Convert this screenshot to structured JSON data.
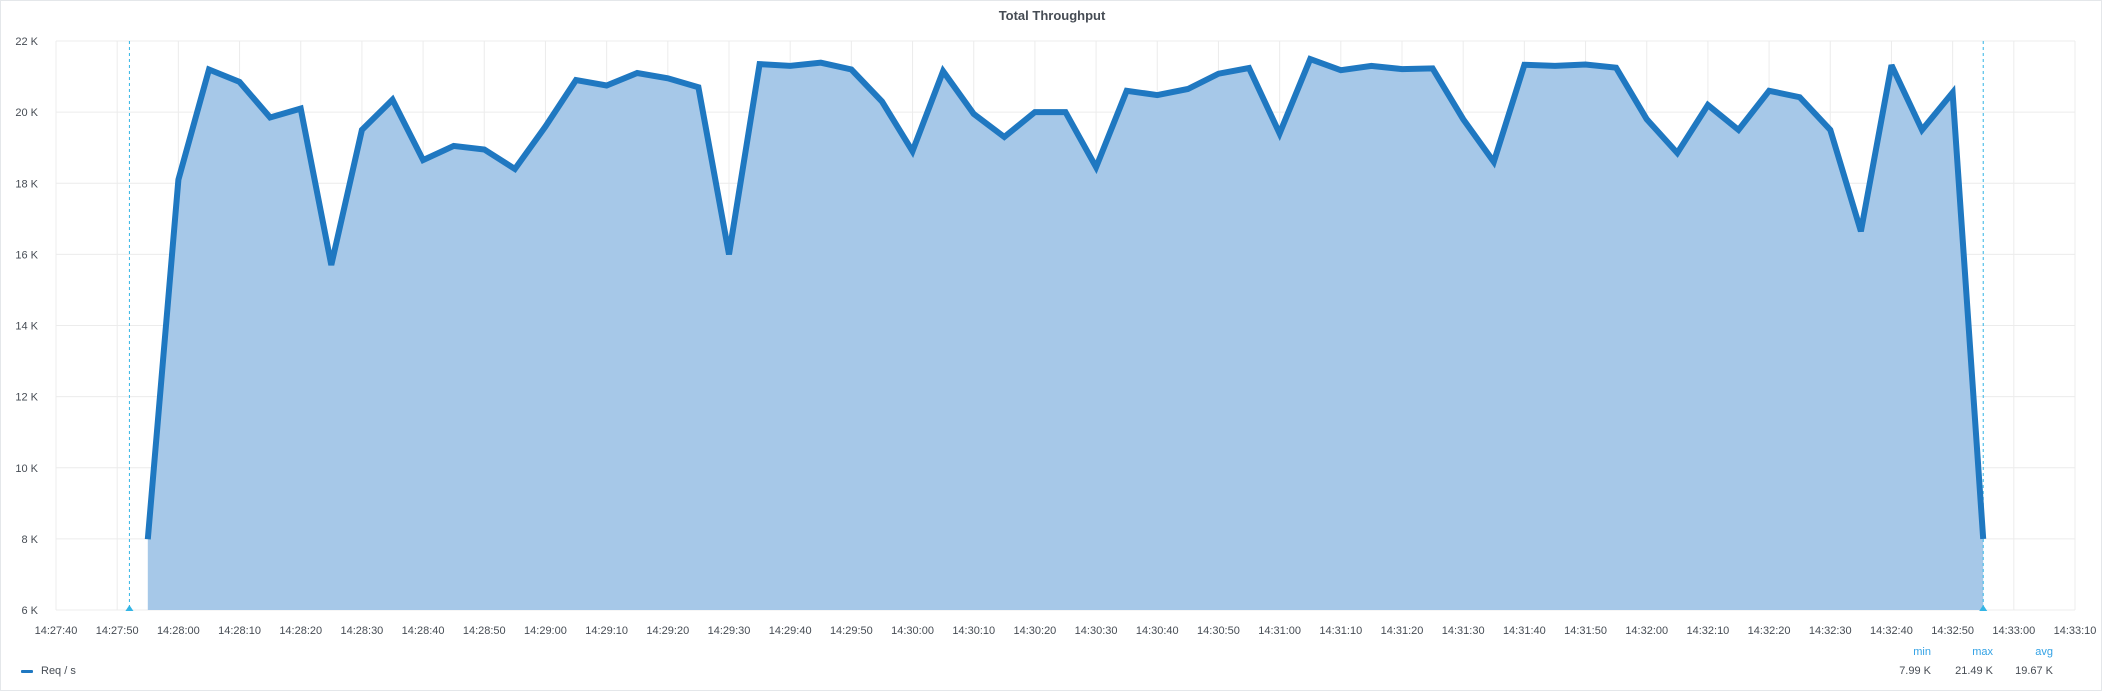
{
  "panel": {
    "title": "Total Throughput"
  },
  "legend": {
    "series_label": "Req / s",
    "stats": [
      {
        "label": "min",
        "value": "7.99 K"
      },
      {
        "label": "max",
        "value": "21.49 K"
      },
      {
        "label": "avg",
        "value": "19.67 K"
      }
    ]
  },
  "colors": {
    "line": "#1f78c1",
    "fill": "#a6c8e8",
    "grid": "#ececec",
    "marker": "#33b5e5",
    "axis_text": "#464c54"
  },
  "chart_data": {
    "type": "area",
    "title": "Total Throughput",
    "xlabel": "",
    "ylabel": "",
    "grid": true,
    "legend_placement": "bottom-left",
    "x_tick_labels": [
      "14:27:40",
      "14:27:50",
      "14:28:00",
      "14:28:10",
      "14:28:20",
      "14:28:30",
      "14:28:40",
      "14:28:50",
      "14:29:00",
      "14:29:10",
      "14:29:20",
      "14:29:30",
      "14:29:40",
      "14:29:50",
      "14:30:00",
      "14:30:10",
      "14:30:20",
      "14:30:30",
      "14:30:40",
      "14:30:50",
      "14:31:00",
      "14:31:10",
      "14:31:20",
      "14:31:30",
      "14:31:40",
      "14:31:50",
      "14:32:00",
      "14:32:10",
      "14:32:20",
      "14:32:30",
      "14:32:40",
      "14:32:50",
      "14:33:00",
      "14:33:10"
    ],
    "y_tick_labels": [
      "6 K",
      "8 K",
      "10 K",
      "12 K",
      "14 K",
      "16 K",
      "18 K",
      "20 K",
      "22 K"
    ],
    "ylim": [
      6000,
      22000
    ],
    "x_range": [
      "14:27:40",
      "14:33:10"
    ],
    "markers": [
      "14:27:52",
      "14:32:55"
    ],
    "series": [
      {
        "name": "Req / s",
        "x": [
          "14:27:55",
          "14:28:00",
          "14:28:05",
          "14:28:10",
          "14:28:15",
          "14:28:20",
          "14:28:25",
          "14:28:30",
          "14:28:35",
          "14:28:40",
          "14:28:45",
          "14:28:50",
          "14:28:55",
          "14:29:00",
          "14:29:05",
          "14:29:10",
          "14:29:15",
          "14:29:20",
          "14:29:25",
          "14:29:30",
          "14:29:35",
          "14:29:40",
          "14:29:45",
          "14:29:50",
          "14:29:55",
          "14:30:00",
          "14:30:05",
          "14:30:10",
          "14:30:15",
          "14:30:20",
          "14:30:25",
          "14:30:30",
          "14:30:35",
          "14:30:40",
          "14:30:45",
          "14:30:50",
          "14:30:55",
          "14:31:00",
          "14:31:05",
          "14:31:10",
          "14:31:15",
          "14:31:20",
          "14:31:25",
          "14:31:30",
          "14:31:35",
          "14:31:40",
          "14:31:45",
          "14:31:50",
          "14:31:55",
          "14:32:00",
          "14:32:05",
          "14:32:10",
          "14:32:15",
          "14:32:20",
          "14:32:25",
          "14:32:30",
          "14:32:35",
          "14:32:40",
          "14:32:45",
          "14:32:50",
          "14:32:55"
        ],
        "values": [
          7990,
          18100,
          21200,
          20850,
          19850,
          20100,
          15700,
          19500,
          20350,
          18650,
          19050,
          18950,
          18400,
          19600,
          20900,
          20750,
          21100,
          20950,
          20700,
          16000,
          21350,
          21300,
          21390,
          21200,
          20300,
          18900,
          21150,
          19950,
          19300,
          20000,
          20000,
          18450,
          20600,
          20480,
          20650,
          21080,
          21240,
          19400,
          21490,
          21180,
          21300,
          21210,
          21230,
          19800,
          18600,
          21330,
          21300,
          21340,
          21250,
          19800,
          18850,
          20200,
          19500,
          20600,
          20420,
          19500,
          16650,
          21320,
          19500,
          20550,
          8000
        ]
      }
    ]
  }
}
